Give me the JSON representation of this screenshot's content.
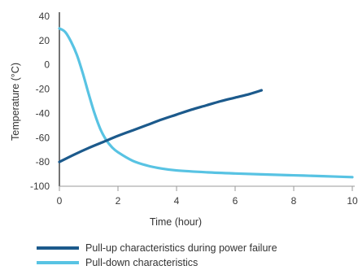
{
  "chart_data": {
    "type": "line",
    "xlabel": "Time (hour)",
    "ylabel": "Temperature (°C)",
    "xlim": [
      0,
      10
    ],
    "ylim": [
      -100,
      40
    ],
    "x_ticks": [
      0,
      2,
      4,
      6,
      8,
      10
    ],
    "y_ticks": [
      40,
      20,
      0,
      -20,
      -40,
      -60,
      -80,
      -100
    ],
    "grid": false,
    "legend_position": "bottom",
    "series": [
      {
        "name": "Pull-up characteristics during power failure",
        "color": "#1c5a8c",
        "x": [
          0,
          0.5,
          1,
          1.5,
          2,
          2.5,
          3,
          3.5,
          4,
          4.5,
          5,
          5.5,
          6,
          6.5,
          6.9
        ],
        "y": [
          -80,
          -74,
          -68.5,
          -63.5,
          -58.5,
          -54,
          -49.5,
          -45,
          -41,
          -37,
          -33.5,
          -30,
          -27,
          -24,
          -21
        ]
      },
      {
        "name": "Pull-down characteristics",
        "color": "#58c3e3",
        "x": [
          0,
          0.2,
          0.4,
          0.6,
          0.8,
          1.0,
          1.2,
          1.4,
          1.6,
          1.8,
          2.0,
          2.5,
          3,
          3.5,
          4,
          5,
          6,
          7,
          8,
          9,
          10
        ],
        "y": [
          30,
          27,
          19,
          8,
          -7,
          -24,
          -40,
          -53,
          -62,
          -68,
          -72,
          -79,
          -83,
          -85.5,
          -87,
          -88.5,
          -89.5,
          -90.3,
          -91,
          -91.7,
          -92.5
        ]
      }
    ]
  }
}
